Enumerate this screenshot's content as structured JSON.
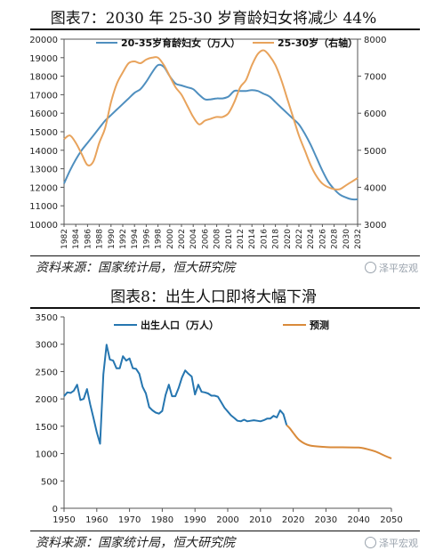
{
  "chart_data": [
    {
      "type": "line",
      "title": "图表7：2030 年 25-30 岁育龄妇女将减少 44%",
      "x_ticks": [
        "1982",
        "1984",
        "1986",
        "1988",
        "1990",
        "1992",
        "1994",
        "1996",
        "1998",
        "2000",
        "2002",
        "2004",
        "2006",
        "2008",
        "2010",
        "2012",
        "2014",
        "2016",
        "2018",
        "2020",
        "2022",
        "2024",
        "2026",
        "2028",
        "2030",
        "2032"
      ],
      "xlim": [
        1982,
        2032
      ],
      "ylim": [
        10000,
        20000
      ],
      "y_ticks": [
        10000,
        11000,
        12000,
        13000,
        14000,
        15000,
        16000,
        17000,
        18000,
        19000,
        20000
      ],
      "y2lim": [
        3000,
        8000
      ],
      "y2_ticks": [
        3000,
        4000,
        5000,
        6000,
        7000,
        8000
      ],
      "grid": false,
      "legend_position": "top",
      "series": [
        {
          "name": "20-35岁育龄妇女（万人）",
          "axis": "left",
          "color": "#4f8fbf",
          "x": [
            1982,
            1983,
            1984,
            1985,
            1986,
            1987,
            1988,
            1989,
            1990,
            1991,
            1992,
            1993,
            1994,
            1995,
            1996,
            1997,
            1998,
            1999,
            2000,
            2001,
            2002,
            2003,
            2004,
            2005,
            2006,
            2007,
            2008,
            2009,
            2010,
            2011,
            2012,
            2013,
            2014,
            2015,
            2016,
            2017,
            2018,
            2019,
            2020,
            2021,
            2022,
            2023,
            2024,
            2025,
            2026,
            2027,
            2028,
            2029,
            2030,
            2031,
            2032
          ],
          "values": [
            12200,
            12900,
            13500,
            14000,
            14400,
            14800,
            15200,
            15600,
            15900,
            16200,
            16500,
            16800,
            17100,
            17300,
            17700,
            18200,
            18600,
            18500,
            18000,
            17600,
            17500,
            17400,
            17300,
            17000,
            16750,
            16750,
            16800,
            16800,
            16900,
            17200,
            17200,
            17200,
            17250,
            17200,
            17050,
            16900,
            16600,
            16300,
            16000,
            15700,
            15400,
            14900,
            14300,
            13600,
            12900,
            12300,
            11900,
            11600,
            11450,
            11350,
            11350
          ]
        },
        {
          "name": "25-30岁（右轴）",
          "axis": "right",
          "color": "#e8a35c",
          "x": [
            1982,
            1983,
            1984,
            1985,
            1986,
            1987,
            1988,
            1989,
            1990,
            1991,
            1992,
            1993,
            1994,
            1995,
            1996,
            1997,
            1998,
            1999,
            2000,
            2001,
            2002,
            2003,
            2004,
            2005,
            2006,
            2007,
            2008,
            2009,
            2010,
            2011,
            2012,
            2013,
            2014,
            2015,
            2016,
            2017,
            2018,
            2019,
            2020,
            2021,
            2022,
            2023,
            2024,
            2025,
            2026,
            2027,
            2028,
            2029,
            2030,
            2031,
            2032
          ],
          "values": [
            5300,
            5400,
            5200,
            4900,
            4600,
            4700,
            5200,
            5600,
            6300,
            6800,
            7100,
            7350,
            7400,
            7350,
            7450,
            7500,
            7500,
            7300,
            7000,
            6700,
            6500,
            6200,
            5900,
            5700,
            5800,
            5850,
            5900,
            5900,
            6000,
            6300,
            6700,
            6900,
            7300,
            7600,
            7700,
            7550,
            7300,
            6900,
            6400,
            5900,
            5400,
            5000,
            4600,
            4300,
            4100,
            4000,
            3950,
            3950,
            4050,
            4150,
            4250
          ]
        }
      ]
    },
    {
      "type": "line",
      "title": "图表8：出生人口即将大幅下滑",
      "x_ticks": [
        "1950",
        "1960",
        "1970",
        "1980",
        "1990",
        "2000",
        "2010",
        "2020",
        "2030",
        "2040",
        "2050"
      ],
      "xlim": [
        1950,
        2050
      ],
      "ylim": [
        0,
        3500
      ],
      "y_ticks": [
        0,
        500,
        1000,
        1500,
        2000,
        2500,
        3000,
        3500
      ],
      "grid": false,
      "legend_position": "top",
      "series": [
        {
          "name": "出生人口（万人）",
          "color": "#2676b0",
          "x": [
            1950,
            1951,
            1952,
            1953,
            1954,
            1955,
            1956,
            1957,
            1958,
            1959,
            1960,
            1961,
            1962,
            1963,
            1964,
            1965,
            1966,
            1967,
            1968,
            1969,
            1970,
            1971,
            1972,
            1973,
            1974,
            1975,
            1976,
            1977,
            1978,
            1979,
            1980,
            1981,
            1982,
            1983,
            1984,
            1985,
            1986,
            1987,
            1988,
            1989,
            1990,
            1991,
            1992,
            1993,
            1994,
            1995,
            1996,
            1997,
            1998,
            1999,
            2000,
            2001,
            2002,
            2003,
            2004,
            2005,
            2006,
            2007,
            2008,
            2009,
            2010,
            2011,
            2012,
            2013,
            2014,
            2015,
            2016,
            2017,
            2018
          ],
          "values": [
            2050,
            2120,
            2110,
            2150,
            2260,
            1980,
            2000,
            2180,
            1900,
            1650,
            1390,
            1180,
            2450,
            2990,
            2720,
            2700,
            2560,
            2560,
            2780,
            2700,
            2740,
            2560,
            2550,
            2460,
            2220,
            2100,
            1850,
            1790,
            1750,
            1730,
            1780,
            2070,
            2260,
            2050,
            2050,
            2200,
            2390,
            2520,
            2460,
            2410,
            2080,
            2260,
            2130,
            2120,
            2100,
            2060,
            2060,
            2040,
            1940,
            1840,
            1770,
            1700,
            1650,
            1600,
            1590,
            1620,
            1590,
            1600,
            1610,
            1600,
            1590,
            1610,
            1640,
            1640,
            1690,
            1660,
            1790,
            1720,
            1520
          ]
        },
        {
          "name": "预测",
          "color": "#d98a3a",
          "x": [
            2018,
            2019,
            2020,
            2022,
            2025,
            2030,
            2035,
            2040,
            2042,
            2045,
            2048,
            2050
          ],
          "values": [
            1520,
            1460,
            1380,
            1240,
            1150,
            1120,
            1115,
            1110,
            1090,
            1040,
            960,
            910
          ]
        }
      ]
    }
  ],
  "sources": {
    "source1": "资料来源：国家统计局，恒大研究院",
    "source2": "资料来源：国家统计局，恒大研究院"
  },
  "watermark": {
    "text1": "泽平宏观",
    "text2": "泽平宏观"
  }
}
